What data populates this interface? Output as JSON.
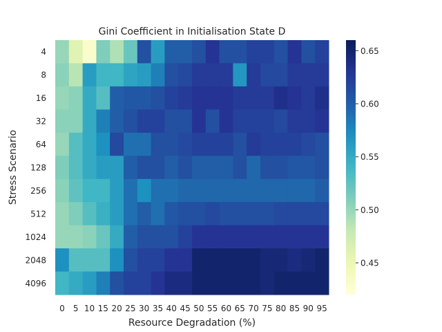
{
  "chart_data": {
    "type": "heatmap",
    "title": "Gini Coefficient in Initialisation State D",
    "xlabel": "Resource Degradation (%)",
    "ylabel": "Stress Scenario",
    "x_categories": [
      "0",
      "5",
      "10",
      "15",
      "20",
      "25",
      "30",
      "35",
      "40",
      "45",
      "50",
      "55",
      "60",
      "65",
      "70",
      "75",
      "80",
      "85",
      "90",
      "95"
    ],
    "y_categories": [
      "4",
      "8",
      "16",
      "32",
      "64",
      "128",
      "256",
      "512",
      "1024",
      "2048",
      "4096"
    ],
    "colormap": "YlGnBu",
    "vmin": 0.42,
    "vmax": 0.66,
    "colorbar_ticks": [
      0.45,
      0.5,
      0.55,
      0.6,
      0.65
    ],
    "colorbar_tick_labels": [
      "0.45",
      "0.50",
      "0.55",
      "0.60",
      "0.65"
    ],
    "grid": false,
    "values": [
      [
        0.5,
        0.46,
        0.43,
        0.51,
        0.49,
        0.52,
        0.61,
        0.56,
        0.6,
        0.6,
        0.61,
        0.63,
        0.61,
        0.61,
        0.62,
        0.62,
        0.61,
        0.63,
        0.61,
        0.62
      ],
      [
        0.505,
        0.485,
        0.56,
        0.54,
        0.54,
        0.555,
        0.56,
        0.58,
        0.61,
        0.615,
        0.625,
        0.625,
        0.625,
        0.565,
        0.625,
        0.615,
        0.615,
        0.625,
        0.625,
        0.625
      ],
      [
        0.5,
        0.505,
        0.55,
        0.53,
        0.6,
        0.605,
        0.605,
        0.61,
        0.62,
        0.625,
        0.63,
        0.63,
        0.63,
        0.625,
        0.625,
        0.625,
        0.635,
        0.63,
        0.625,
        0.635
      ],
      [
        0.505,
        0.505,
        0.55,
        0.58,
        0.6,
        0.61,
        0.62,
        0.62,
        0.61,
        0.61,
        0.63,
        0.61,
        0.63,
        0.62,
        0.62,
        0.62,
        0.615,
        0.625,
        0.625,
        0.63
      ],
      [
        0.5,
        0.53,
        0.55,
        0.57,
        0.615,
        0.59,
        0.59,
        0.61,
        0.61,
        0.615,
        0.62,
        0.62,
        0.62,
        0.61,
        0.625,
        0.62,
        0.62,
        0.62,
        0.615,
        0.61
      ],
      [
        0.51,
        0.53,
        0.55,
        0.56,
        0.56,
        0.6,
        0.61,
        0.61,
        0.6,
        0.61,
        0.6,
        0.6,
        0.6,
        0.61,
        0.595,
        0.61,
        0.61,
        0.605,
        0.605,
        0.61
      ],
      [
        0.505,
        0.525,
        0.54,
        0.54,
        0.56,
        0.59,
        0.57,
        0.59,
        0.59,
        0.595,
        0.595,
        0.595,
        0.595,
        0.595,
        0.595,
        0.595,
        0.595,
        0.595,
        0.595,
        0.6
      ],
      [
        0.5,
        0.51,
        0.53,
        0.545,
        0.56,
        0.59,
        0.6,
        0.59,
        0.605,
        0.61,
        0.61,
        0.615,
        0.61,
        0.61,
        0.61,
        0.61,
        0.615,
        0.615,
        0.615,
        0.615
      ],
      [
        0.5,
        0.5,
        0.505,
        0.52,
        0.55,
        0.6,
        0.61,
        0.61,
        0.61,
        0.62,
        0.63,
        0.63,
        0.63,
        0.63,
        0.63,
        0.63,
        0.63,
        0.63,
        0.63,
        0.63
      ],
      [
        0.57,
        0.53,
        0.53,
        0.53,
        0.57,
        0.61,
        0.62,
        0.62,
        0.63,
        0.63,
        0.65,
        0.65,
        0.65,
        0.65,
        0.65,
        0.645,
        0.645,
        0.64,
        0.645,
        0.65
      ],
      [
        0.54,
        0.55,
        0.56,
        0.58,
        0.61,
        0.62,
        0.62,
        0.63,
        0.64,
        0.64,
        0.65,
        0.65,
        0.65,
        0.65,
        0.65,
        0.645,
        0.65,
        0.65,
        0.65,
        0.65
      ]
    ]
  }
}
